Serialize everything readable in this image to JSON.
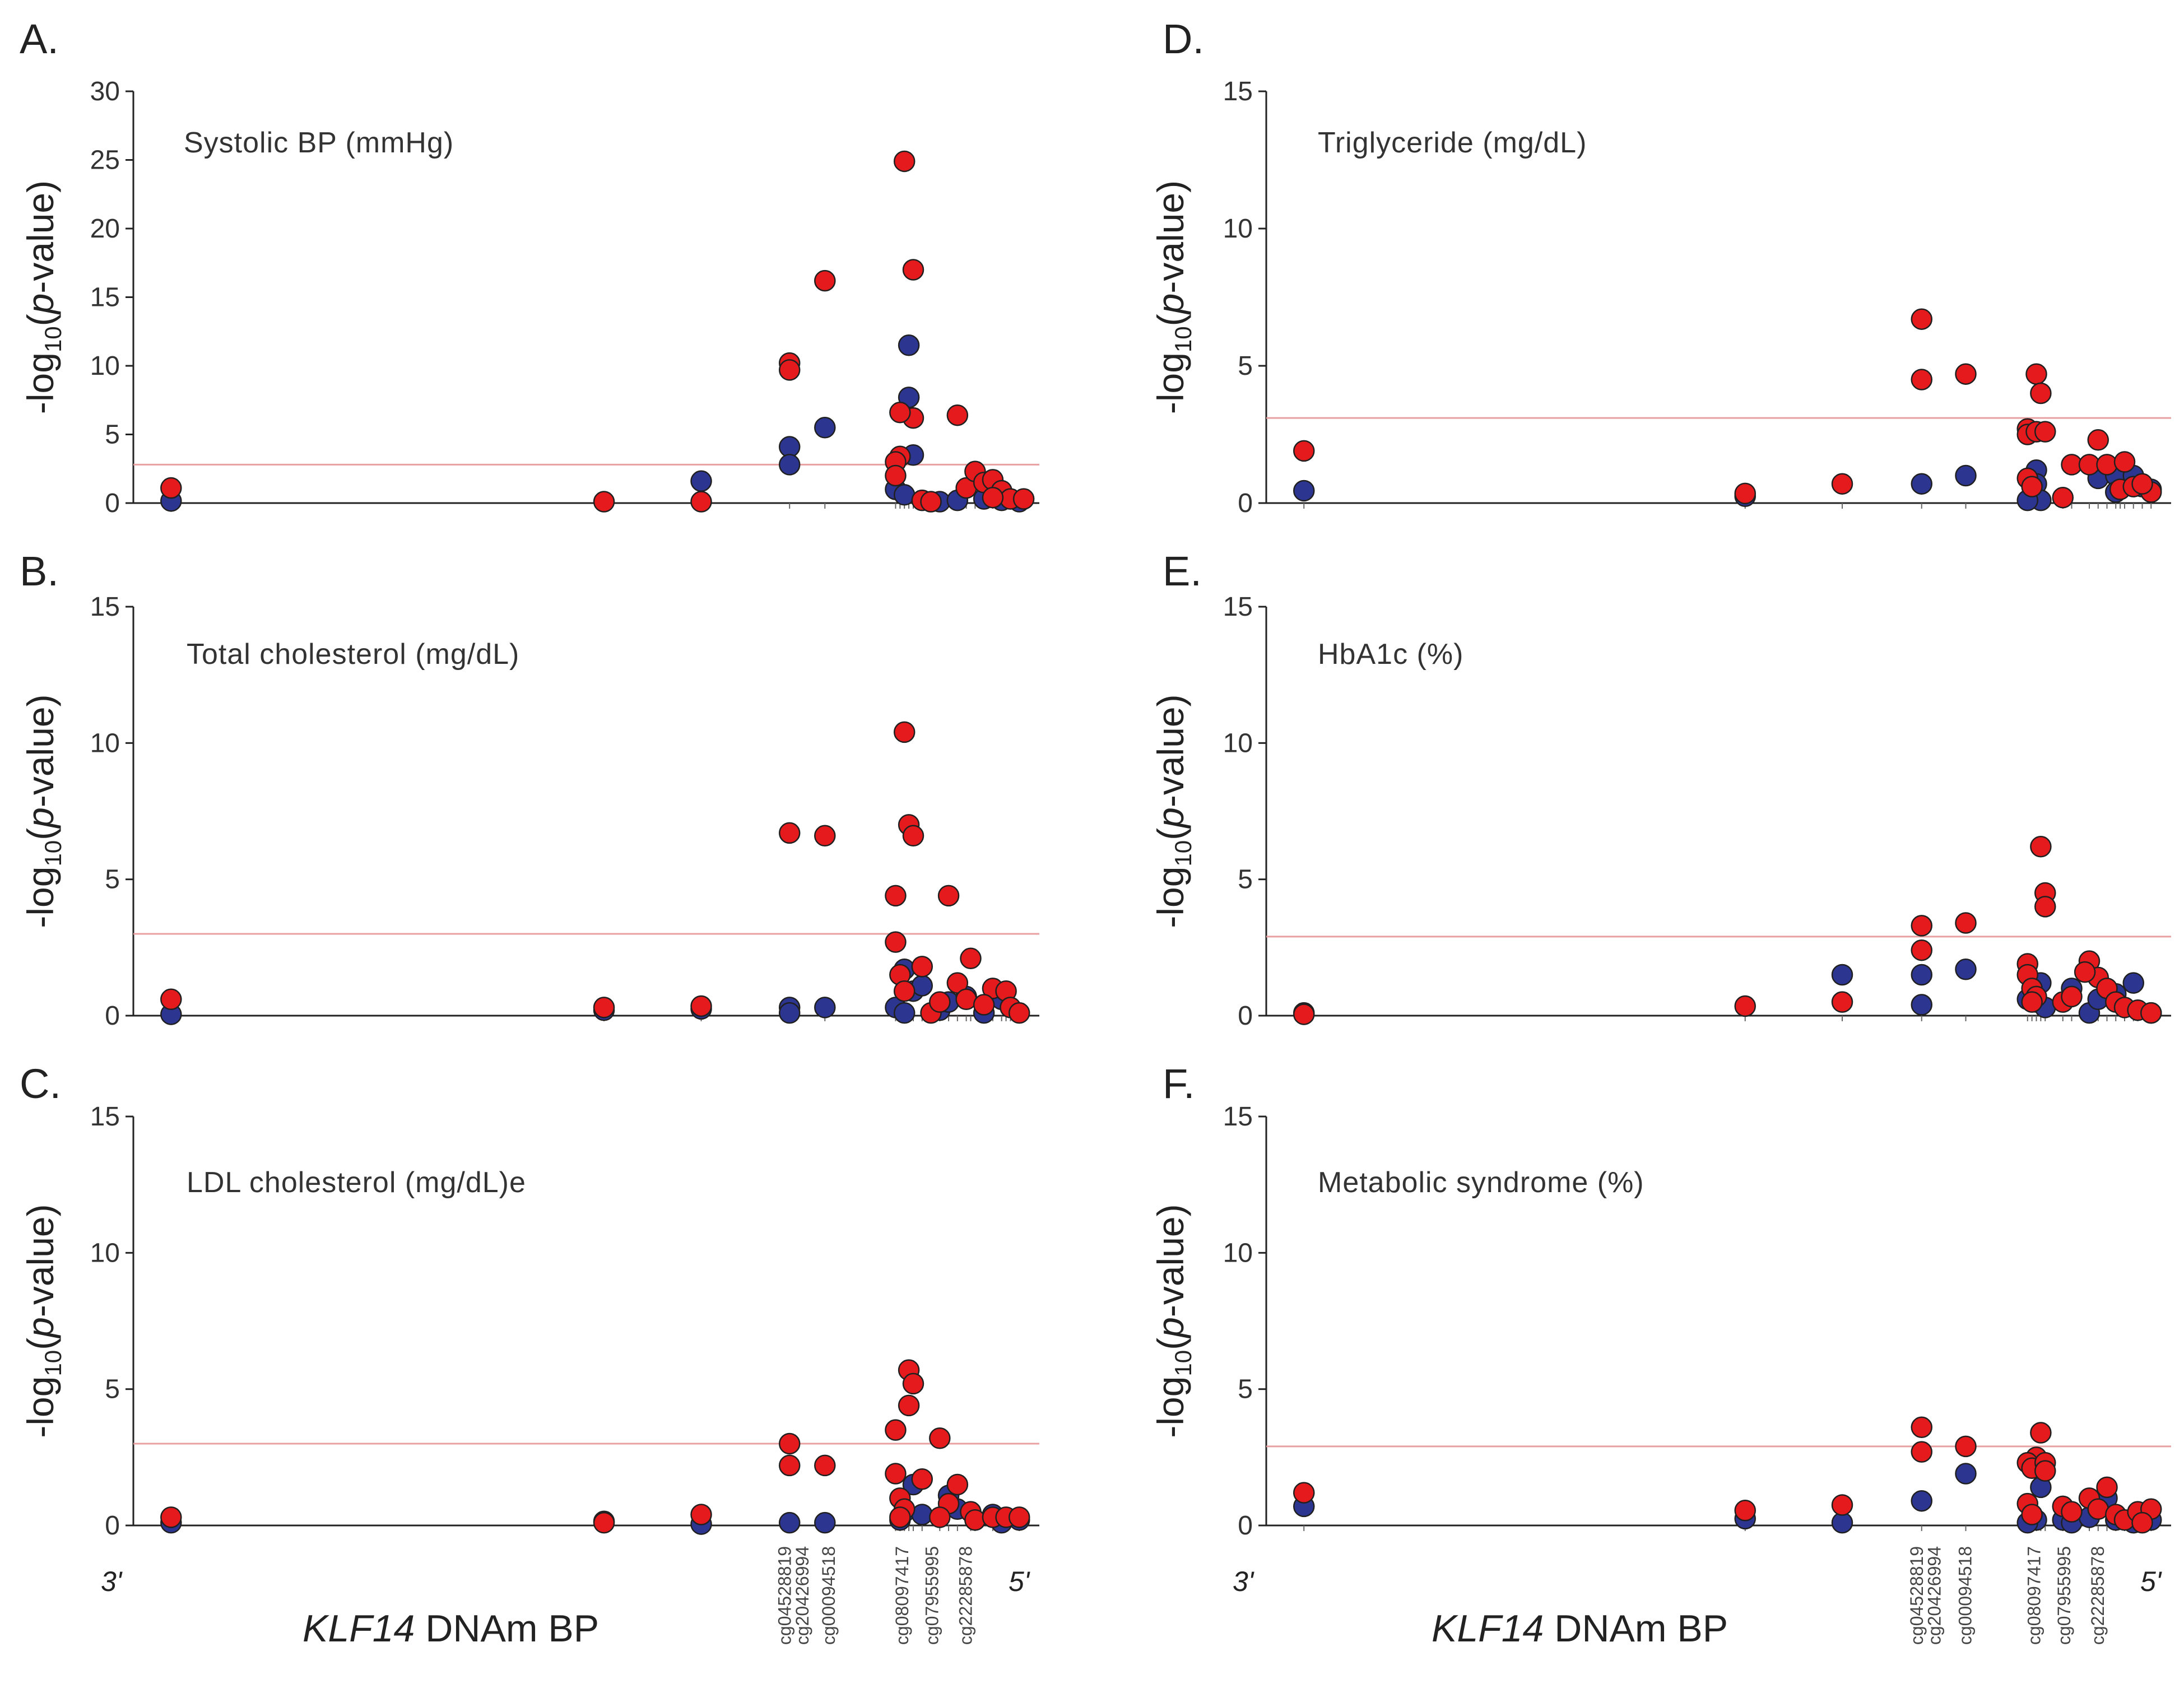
{
  "colors": {
    "hypermethylated": "#e41a1c",
    "hypomethylated": "#2c3590",
    "threshold": "#e8a0a0"
  },
  "common": {
    "ylabel_pre": "-log",
    "ylabel_sub": "10",
    "ylabel_open": "(",
    "ylabel_p": "p",
    "ylabel_post": "-value)",
    "xlabel_gene": "KLF14",
    "xlabel_rest": " DNAm BP",
    "end_left": "3'",
    "end_right": "5'",
    "probe_labels": [
      [
        "cg04528819",
        "cg20426994",
        "cg00094518"
      ],
      [
        "cg08097417",
        "cg07955995",
        "cg22285878"
      ]
    ]
  },
  "chart_data": [
    {
      "type": "scatter",
      "letter": "A.",
      "title": "Systolic BP (mmHg)",
      "ylim": [
        0,
        30
      ],
      "yticks": [
        0,
        5,
        10,
        15,
        20,
        25,
        30
      ],
      "threshold": 2.8,
      "red": [
        [
          0.03,
          1.1
        ],
        [
          0.52,
          0.1
        ],
        [
          0.63,
          0.1
        ],
        [
          0.73,
          10.2
        ],
        [
          0.73,
          9.7
        ],
        [
          0.77,
          16.2
        ],
        [
          0.86,
          24.9
        ],
        [
          0.87,
          17.0
        ],
        [
          0.87,
          6.2
        ],
        [
          0.855,
          6.6
        ],
        [
          0.855,
          3.4
        ],
        [
          0.85,
          3.0
        ],
        [
          0.85,
          2.0
        ],
        [
          0.92,
          6.4
        ],
        [
          0.88,
          0.2
        ],
        [
          0.89,
          0.1
        ],
        [
          0.93,
          1.1
        ],
        [
          0.94,
          2.3
        ],
        [
          0.95,
          1.5
        ],
        [
          0.96,
          1.7
        ],
        [
          0.97,
          0.9
        ],
        [
          0.98,
          0.3
        ],
        [
          0.995,
          0.3
        ],
        [
          0.96,
          0.4
        ]
      ],
      "blue": [
        [
          0.03,
          0.15
        ],
        [
          0.63,
          1.6
        ],
        [
          0.73,
          4.1
        ],
        [
          0.73,
          2.8
        ],
        [
          0.77,
          5.5
        ],
        [
          0.865,
          11.5
        ],
        [
          0.865,
          7.7
        ],
        [
          0.87,
          3.5
        ],
        [
          0.85,
          1.0
        ],
        [
          0.86,
          0.6
        ],
        [
          0.9,
          0.1
        ],
        [
          0.92,
          0.2
        ],
        [
          0.95,
          0.3
        ],
        [
          0.97,
          0.2
        ],
        [
          0.99,
          0.1
        ]
      ]
    },
    {
      "type": "scatter",
      "letter": "D.",
      "title": "Triglyceride (mg/dL)",
      "ylim": [
        0,
        15
      ],
      "yticks": [
        0,
        5,
        10,
        15
      ],
      "threshold": 3.1,
      "red": [
        [
          0.03,
          1.9
        ],
        [
          0.53,
          0.35
        ],
        [
          0.64,
          0.7
        ],
        [
          0.73,
          6.7
        ],
        [
          0.73,
          4.5
        ],
        [
          0.78,
          4.7
        ],
        [
          0.86,
          4.7
        ],
        [
          0.865,
          4.0
        ],
        [
          0.85,
          2.7
        ],
        [
          0.85,
          2.5
        ],
        [
          0.86,
          2.6
        ],
        [
          0.87,
          2.6
        ],
        [
          0.85,
          0.9
        ],
        [
          0.855,
          0.6
        ],
        [
          0.89,
          0.2
        ],
        [
          0.9,
          1.4
        ],
        [
          0.92,
          1.4
        ],
        [
          0.93,
          2.3
        ],
        [
          0.94,
          1.4
        ],
        [
          0.96,
          1.5
        ],
        [
          0.955,
          0.5
        ],
        [
          0.97,
          0.6
        ],
        [
          0.99,
          0.4
        ],
        [
          0.98,
          0.7
        ]
      ],
      "blue": [
        [
          0.03,
          0.45
        ],
        [
          0.53,
          0.25
        ],
        [
          0.73,
          0.7
        ],
        [
          0.78,
          1.0
        ],
        [
          0.86,
          1.2
        ],
        [
          0.86,
          0.7
        ],
        [
          0.855,
          0.3
        ],
        [
          0.865,
          0.1
        ],
        [
          0.85,
          0.1
        ],
        [
          0.93,
          0.9
        ],
        [
          0.95,
          1.0
        ],
        [
          0.97,
          1.0
        ],
        [
          0.98,
          0.6
        ],
        [
          0.95,
          0.4
        ],
        [
          0.99,
          0.5
        ]
      ]
    },
    {
      "type": "scatter",
      "letter": "B.",
      "title": "Total cholesterol (mg/dL)",
      "ylim": [
        0,
        15
      ],
      "yticks": [
        0,
        5,
        10,
        15
      ],
      "threshold": 3.0,
      "red": [
        [
          0.03,
          0.6
        ],
        [
          0.52,
          0.3
        ],
        [
          0.63,
          0.35
        ],
        [
          0.73,
          6.7
        ],
        [
          0.77,
          6.6
        ],
        [
          0.86,
          10.4
        ],
        [
          0.865,
          7.0
        ],
        [
          0.87,
          6.6
        ],
        [
          0.85,
          4.4
        ],
        [
          0.85,
          2.7
        ],
        [
          0.855,
          1.5
        ],
        [
          0.86,
          0.9
        ],
        [
          0.88,
          1.8
        ],
        [
          0.89,
          0.1
        ],
        [
          0.91,
          4.4
        ],
        [
          0.92,
          1.2
        ],
        [
          0.935,
          2.1
        ],
        [
          0.93,
          0.6
        ],
        [
          0.96,
          1.0
        ],
        [
          0.95,
          0.4
        ],
        [
          0.975,
          0.9
        ],
        [
          0.98,
          0.3
        ],
        [
          0.99,
          0.1
        ],
        [
          0.9,
          0.5
        ]
      ],
      "blue": [
        [
          0.03,
          0.05
        ],
        [
          0.52,
          0.2
        ],
        [
          0.63,
          0.25
        ],
        [
          0.73,
          0.3
        ],
        [
          0.73,
          0.1
        ],
        [
          0.77,
          0.3
        ],
        [
          0.86,
          1.7
        ],
        [
          0.87,
          0.9
        ],
        [
          0.85,
          0.3
        ],
        [
          0.86,
          0.1
        ],
        [
          0.88,
          1.1
        ],
        [
          0.9,
          0.2
        ],
        [
          0.91,
          0.5
        ],
        [
          0.93,
          0.7
        ],
        [
          0.95,
          0.1
        ],
        [
          0.97,
          0.6
        ]
      ]
    },
    {
      "type": "scatter",
      "letter": "E.",
      "title": "HbA1c (%)",
      "ylim": [
        0,
        15
      ],
      "yticks": [
        0,
        5,
        10,
        15
      ],
      "threshold": 2.9,
      "red": [
        [
          0.03,
          0.05
        ],
        [
          0.53,
          0.35
        ],
        [
          0.64,
          0.5
        ],
        [
          0.73,
          3.3
        ],
        [
          0.73,
          2.4
        ],
        [
          0.78,
          3.4
        ],
        [
          0.865,
          6.2
        ],
        [
          0.87,
          4.5
        ],
        [
          0.87,
          4.0
        ],
        [
          0.85,
          1.9
        ],
        [
          0.85,
          1.5
        ],
        [
          0.855,
          1.0
        ],
        [
          0.86,
          0.7
        ],
        [
          0.855,
          0.5
        ],
        [
          0.89,
          0.5
        ],
        [
          0.9,
          0.7
        ],
        [
          0.92,
          2.0
        ],
        [
          0.93,
          1.4
        ],
        [
          0.94,
          1.0
        ],
        [
          0.95,
          0.5
        ],
        [
          0.96,
          0.3
        ],
        [
          0.975,
          0.2
        ],
        [
          0.99,
          0.1
        ],
        [
          0.915,
          1.6
        ]
      ],
      "blue": [
        [
          0.03,
          0.1
        ],
        [
          0.64,
          1.5
        ],
        [
          0.73,
          1.5
        ],
        [
          0.73,
          0.4
        ],
        [
          0.78,
          1.7
        ],
        [
          0.86,
          0.5
        ],
        [
          0.865,
          1.2
        ],
        [
          0.87,
          0.3
        ],
        [
          0.85,
          0.6
        ],
        [
          0.9,
          1.0
        ],
        [
          0.92,
          0.1
        ],
        [
          0.93,
          0.6
        ],
        [
          0.95,
          0.8
        ],
        [
          0.97,
          1.2
        ],
        [
          0.99,
          0.1
        ]
      ]
    },
    {
      "type": "scatter",
      "letter": "C.",
      "title": "LDL cholesterol (mg/dL)e",
      "ylim": [
        0,
        15
      ],
      "yticks": [
        0,
        5,
        10,
        15
      ],
      "threshold": 3.0,
      "red": [
        [
          0.03,
          0.3
        ],
        [
          0.52,
          0.1
        ],
        [
          0.63,
          0.4
        ],
        [
          0.73,
          3.0
        ],
        [
          0.73,
          2.2
        ],
        [
          0.77,
          2.2
        ],
        [
          0.865,
          5.7
        ],
        [
          0.87,
          5.2
        ],
        [
          0.865,
          4.4
        ],
        [
          0.85,
          3.5
        ],
        [
          0.85,
          1.9
        ],
        [
          0.855,
          1.0
        ],
        [
          0.86,
          0.6
        ],
        [
          0.855,
          0.3
        ],
        [
          0.88,
          1.7
        ],
        [
          0.9,
          3.2
        ],
        [
          0.91,
          0.8
        ],
        [
          0.92,
          1.5
        ],
        [
          0.935,
          0.5
        ],
        [
          0.94,
          0.2
        ],
        [
          0.96,
          0.3
        ],
        [
          0.975,
          0.3
        ],
        [
          0.99,
          0.3
        ],
        [
          0.9,
          0.3
        ]
      ],
      "blue": [
        [
          0.03,
          0.1
        ],
        [
          0.52,
          0.15
        ],
        [
          0.63,
          0.05
        ],
        [
          0.73,
          0.1
        ],
        [
          0.77,
          0.1
        ],
        [
          0.87,
          1.5
        ],
        [
          0.86,
          0.5
        ],
        [
          0.855,
          0.2
        ],
        [
          0.88,
          0.4
        ],
        [
          0.91,
          1.1
        ],
        [
          0.92,
          0.6
        ],
        [
          0.94,
          0.2
        ],
        [
          0.96,
          0.4
        ],
        [
          0.97,
          0.1
        ],
        [
          0.99,
          0.2
        ]
      ]
    },
    {
      "type": "scatter",
      "letter": "F.",
      "title": "Metabolic syndrome (%)",
      "ylim": [
        0,
        15
      ],
      "yticks": [
        0,
        5,
        10,
        15
      ],
      "threshold": 2.9,
      "red": [
        [
          0.03,
          1.2
        ],
        [
          0.53,
          0.55
        ],
        [
          0.64,
          0.75
        ],
        [
          0.73,
          3.6
        ],
        [
          0.73,
          2.7
        ],
        [
          0.78,
          2.9
        ],
        [
          0.865,
          3.4
        ],
        [
          0.86,
          2.5
        ],
        [
          0.85,
          2.3
        ],
        [
          0.855,
          2.1
        ],
        [
          0.87,
          2.3
        ],
        [
          0.87,
          2.0
        ],
        [
          0.85,
          0.8
        ],
        [
          0.855,
          0.4
        ],
        [
          0.89,
          0.7
        ],
        [
          0.9,
          0.5
        ],
        [
          0.92,
          1.0
        ],
        [
          0.93,
          0.6
        ],
        [
          0.94,
          1.4
        ],
        [
          0.95,
          0.4
        ],
        [
          0.96,
          0.2
        ],
        [
          0.975,
          0.5
        ],
        [
          0.99,
          0.6
        ],
        [
          0.98,
          0.1
        ]
      ],
      "blue": [
        [
          0.03,
          0.7
        ],
        [
          0.53,
          0.25
        ],
        [
          0.64,
          0.1
        ],
        [
          0.73,
          0.9
        ],
        [
          0.78,
          1.9
        ],
        [
          0.865,
          1.4
        ],
        [
          0.86,
          0.2
        ],
        [
          0.85,
          0.1
        ],
        [
          0.89,
          0.2
        ],
        [
          0.9,
          0.1
        ],
        [
          0.92,
          0.3
        ],
        [
          0.94,
          1.0
        ],
        [
          0.95,
          0.2
        ],
        [
          0.97,
          0.1
        ],
        [
          0.99,
          0.2
        ]
      ]
    }
  ]
}
